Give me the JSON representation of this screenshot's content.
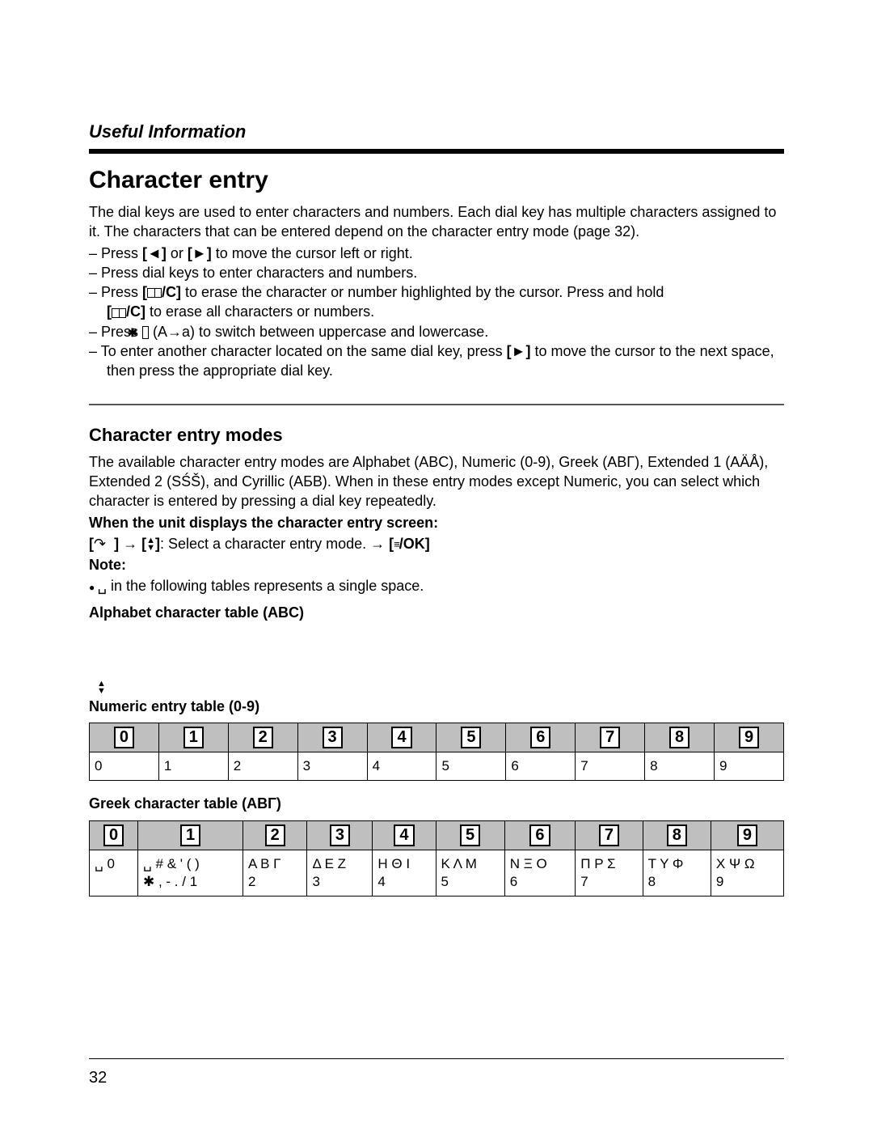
{
  "header": {
    "section": "Useful Information"
  },
  "title": "Character entry",
  "intro": "The dial keys are used to enter characters and numbers. Each dial key has multiple characters assigned to it. The characters that can be entered depend on the character entry mode (page 32).",
  "instructions": {
    "i1a": "Press ",
    "i1b": " or ",
    "i1c": " to move the cursor left or right.",
    "i2": "Press dial keys to enter characters and numbers.",
    "i3a": "Press ",
    "i3b": " to erase the character or number highlighted by the cursor. Press and hold ",
    "i3c": " to erase all characters or numbers.",
    "i4a": "Press ",
    "i4b": " (A→a) to switch between uppercase and lowercase.",
    "i5a": "To enter another character located on the same dial key, press ",
    "i5b": " to move the cursor to the next space, then press the appropriate dial key."
  },
  "modes": {
    "heading": "Character entry modes",
    "p1": "The available character entry modes are Alphabet (ABC), Numeric (0-9), Greek (ΑΒΓ), Extended 1 (AÄÅ), Extended 2 (SŚŠ), and Cyrillic (АБВ). When in these entry modes except Numeric, you can select which character is entered by pressing a dial key repeatedly.",
    "when_label": "When the unit displays the character entry screen:",
    "select_line_a": ": Select a character entry mode. → ",
    "ok_label": "/OK",
    "note_label": "Note:",
    "note_1": "␣ in the following tables represents a single space."
  },
  "tables": {
    "abc_label": "Alphabet character table (ABC)",
    "numeric_label": "Numeric entry table (0-9)",
    "greek_label": "Greek character table (ΑΒΓ)",
    "key_headers": [
      "0",
      "1",
      "2",
      "3",
      "4",
      "5",
      "6",
      "7",
      "8",
      "9"
    ],
    "numeric_row": [
      "0",
      "1",
      "2",
      "3",
      "4",
      "5",
      "6",
      "7",
      "8",
      "9"
    ],
    "greek_row": [
      "␣ 0",
      "␣ # & ' ( )\n✱ , - . / 1",
      "Α Β Γ\n2",
      "Δ Ε Ζ\n3",
      "Η Θ Ι\n4",
      "Κ Λ Μ\n5",
      "Ν Ξ Ο\n6",
      "Π Ρ Σ\n7",
      "Τ Υ Φ\n8",
      "Χ Ψ Ω\n9"
    ]
  },
  "keys": {
    "left": "◄",
    "right": "►",
    "clear": "/C",
    "star": "✱",
    "updown": "♦",
    "handset": "↷"
  },
  "page_number": "32",
  "style": {
    "header_bg": "#bfbfbf",
    "border_color": "#000000",
    "body_font_size": 18,
    "table_font_size": 17
  }
}
